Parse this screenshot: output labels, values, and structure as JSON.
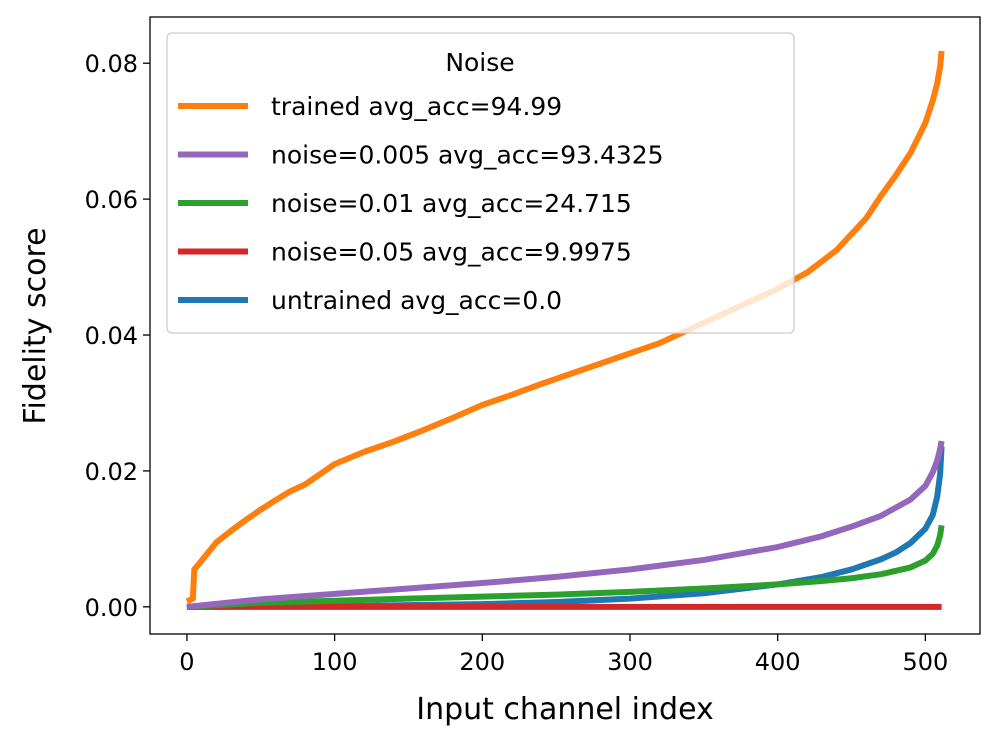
{
  "chart_data": {
    "type": "line",
    "title": "",
    "xlabel": "Input channel index",
    "ylabel": "Fidelity score",
    "xlim": [
      -25,
      537
    ],
    "ylim": [
      -0.004,
      0.0868
    ],
    "xticks": [
      0,
      100,
      200,
      300,
      400,
      500
    ],
    "xtick_labels": [
      "0",
      "100",
      "200",
      "300",
      "400",
      "500"
    ],
    "yticks": [
      0.0,
      0.02,
      0.04,
      0.06,
      0.08
    ],
    "ytick_labels": [
      "0.00",
      "0.02",
      "0.04",
      "0.06",
      "0.08"
    ],
    "grid": false,
    "legend": {
      "title": "Noise",
      "position": "top-left"
    },
    "series": [
      {
        "name": "trained avg_acc=94.99",
        "color": "#ff7f0e",
        "x": [
          0,
          4,
          5,
          10,
          20,
          30,
          40,
          50,
          60,
          70,
          80,
          90,
          100,
          120,
          140,
          160,
          180,
          200,
          220,
          240,
          260,
          280,
          300,
          320,
          340,
          360,
          380,
          400,
          420,
          440,
          460,
          470,
          480,
          490,
          495,
          500,
          505,
          508,
          510,
          511
        ],
        "y": [
          0.0008,
          0.0012,
          0.0055,
          0.0068,
          0.0095,
          0.0112,
          0.0128,
          0.0143,
          0.0157,
          0.017,
          0.018,
          0.0195,
          0.021,
          0.0228,
          0.0243,
          0.026,
          0.0278,
          0.0297,
          0.0312,
          0.0328,
          0.0343,
          0.0358,
          0.0373,
          0.0388,
          0.0408,
          0.0428,
          0.0448,
          0.0468,
          0.0492,
          0.0525,
          0.0572,
          0.0605,
          0.0635,
          0.0668,
          0.069,
          0.0712,
          0.0745,
          0.077,
          0.0795,
          0.0818
        ]
      },
      {
        "name": "noise=0.005 avg_acc=93.4325",
        "color": "#9467bd",
        "x": [
          0,
          50,
          100,
          150,
          200,
          250,
          300,
          350,
          400,
          430,
          450,
          470,
          490,
          500,
          505,
          508,
          510,
          511
        ],
        "y": [
          0.0,
          0.0011,
          0.0019,
          0.0027,
          0.0035,
          0.0044,
          0.0055,
          0.0069,
          0.0088,
          0.0104,
          0.0118,
          0.0134,
          0.0158,
          0.0178,
          0.0198,
          0.0215,
          0.0232,
          0.0244
        ]
      },
      {
        "name": "noise=0.01 avg_acc=24.715",
        "color": "#2ca02c",
        "x": [
          0,
          50,
          100,
          150,
          200,
          250,
          300,
          350,
          400,
          430,
          450,
          470,
          490,
          500,
          505,
          508,
          510,
          511
        ],
        "y": [
          0.0,
          0.0006,
          0.0009,
          0.0012,
          0.0015,
          0.0018,
          0.0022,
          0.0027,
          0.0033,
          0.0038,
          0.0042,
          0.0048,
          0.0058,
          0.0068,
          0.0078,
          0.009,
          0.0105,
          0.012
        ]
      },
      {
        "name": "noise=0.05 avg_acc=9.9975",
        "color": "#d62728",
        "x": [
          0,
          100,
          200,
          300,
          400,
          511
        ],
        "y": [
          0.0,
          0.0,
          0.0,
          0.0,
          0.0,
          0.0
        ]
      },
      {
        "name": "untrained avg_acc=0.0",
        "color": "#1f77b4",
        "x": [
          0,
          100,
          200,
          250,
          300,
          350,
          400,
          430,
          450,
          470,
          480,
          490,
          500,
          505,
          508,
          510,
          511
        ],
        "y": [
          0.0,
          0.0001,
          0.0004,
          0.0007,
          0.0012,
          0.002,
          0.0033,
          0.0044,
          0.0055,
          0.007,
          0.008,
          0.0094,
          0.0115,
          0.0135,
          0.0162,
          0.0195,
          0.0236
        ]
      }
    ]
  }
}
